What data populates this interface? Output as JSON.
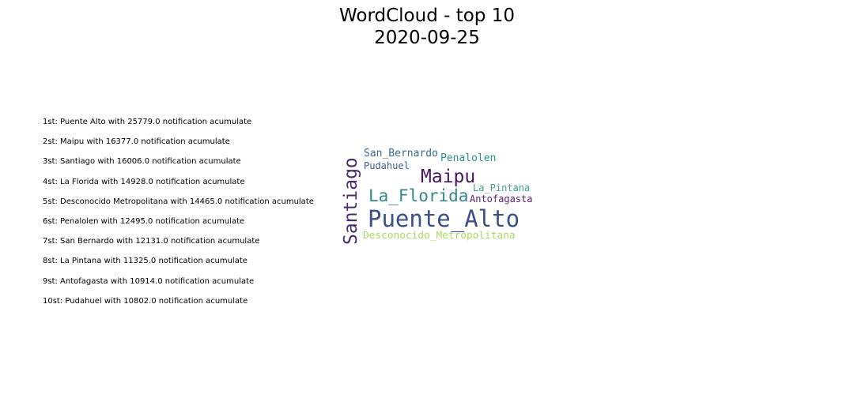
{
  "title": {
    "line1": "WordCloud - top 10",
    "line2": "2020-09-25"
  },
  "ranking": [
    "1st: Puente Alto with 25779.0 notification acumulate",
    "2st: Maipu with 16377.0 notification acumulate",
    "3st: Santiago with 16006.0 notification acumulate",
    "4st: La Florida with 14928.0 notification acumulate",
    "5st: Desconocido Metropolitana with 14465.0 notification acumulate",
    "6st: Penalolen with 12495.0 notification acumulate",
    "7st: San Bernardo with 12131.0 notification acumulate",
    "8st: La Pintana with 11325.0 notification acumulate",
    "9st: Antofagasta with 10914.0 notification acumulate",
    "10st: Pudahuel with 10802.0 notification acumulate"
  ],
  "wordcloud": {
    "words": [
      {
        "text": "Puente_Alto",
        "value": 25779.0,
        "color": "#3b4f8a"
      },
      {
        "text": "Maipu",
        "value": 16377.0,
        "color": "#4a1461"
      },
      {
        "text": "Santiago",
        "value": 16006.0,
        "color": "#4a2c6e"
      },
      {
        "text": "La_Florida",
        "value": 14928.0,
        "color": "#34878c"
      },
      {
        "text": "Desconocido_Metropolitana",
        "value": 14465.0,
        "color": "#a9dc5a"
      },
      {
        "text": "Penalolen",
        "value": 12495.0,
        "color": "#2d9090"
      },
      {
        "text": "San_Bernardo",
        "value": 12131.0,
        "color": "#3a6b8e"
      },
      {
        "text": "La_Pintana",
        "value": 11325.0,
        "color": "#3aa48c"
      },
      {
        "text": "Antofagasta",
        "value": 10914.0,
        "color": "#5a1a6e"
      },
      {
        "text": "Pudahuel",
        "value": 10802.0,
        "color": "#3d5f8e"
      }
    ]
  }
}
